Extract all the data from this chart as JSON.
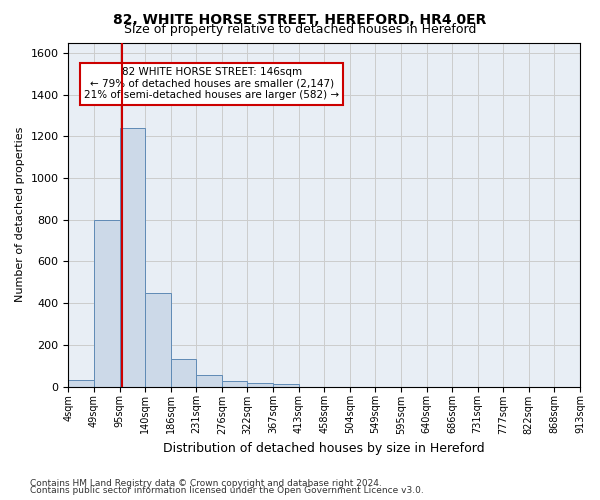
{
  "title": "82, WHITE HORSE STREET, HEREFORD, HR4 0ER",
  "subtitle": "Size of property relative to detached houses in Hereford",
  "xlabel": "Distribution of detached houses by size in Hereford",
  "ylabel": "Number of detached properties",
  "footnote1": "Contains HM Land Registry data © Crown copyright and database right 2024.",
  "footnote2": "Contains public sector information licensed under the Open Government Licence v3.0.",
  "annotation_line1": "82 WHITE HORSE STREET: 146sqm",
  "annotation_line2": "← 79% of detached houses are smaller (2,147)",
  "annotation_line3": "21% of semi-detached houses are larger (582) →",
  "bar_color": "#ccd9e8",
  "bar_edge_color": "#5f8ab5",
  "red_line_color": "#cc0000",
  "grid_color": "#cccccc",
  "background_color": "#e8eef5",
  "bin_labels": [
    "4sqm",
    "49sqm",
    "95sqm",
    "140sqm",
    "186sqm",
    "231sqm",
    "276sqm",
    "322sqm",
    "367sqm",
    "413sqm",
    "458sqm",
    "504sqm",
    "549sqm",
    "595sqm",
    "640sqm",
    "686sqm",
    "731sqm",
    "777sqm",
    "822sqm",
    "868sqm",
    "913sqm"
  ],
  "bar_values": [
    30,
    800,
    1240,
    450,
    130,
    55,
    25,
    18,
    10,
    0,
    0,
    0,
    0,
    0,
    0,
    0,
    0,
    0,
    0,
    0
  ],
  "red_line_x": 2.1,
  "ylim": [
    0,
    1650
  ],
  "yticks": [
    0,
    200,
    400,
    600,
    800,
    1000,
    1200,
    1400,
    1600
  ]
}
